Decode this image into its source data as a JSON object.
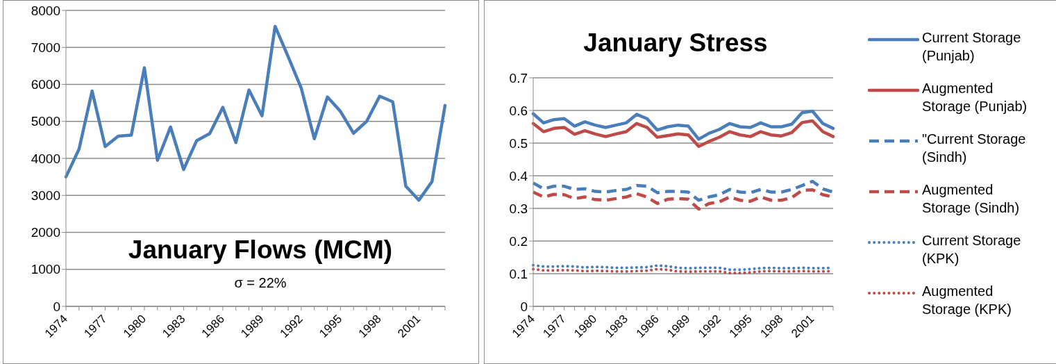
{
  "chart_data": [
    {
      "type": "line",
      "title": "January Flows (MCM)",
      "annotations": [
        "σ = 22%"
      ],
      "categories": [
        "1974",
        null,
        null,
        "1977",
        null,
        null,
        "1980",
        null,
        null,
        "1983",
        null,
        null,
        "1986",
        null,
        null,
        "1989",
        null,
        null,
        "1992",
        null,
        null,
        "1995",
        null,
        null,
        "1998",
        null,
        null,
        "2001",
        null,
        null
      ],
      "series": [
        {
          "color": "#4a7ebb",
          "values": [
            3500,
            4250,
            5820,
            4320,
            4600,
            4630,
            6450,
            3950,
            4850,
            3700,
            4480,
            4670,
            5380,
            4430,
            5850,
            5150,
            7570,
            6750,
            5900,
            4530,
            5660,
            5270,
            4680,
            5000,
            5680,
            5530,
            3250,
            2870,
            3370,
            5430
          ]
        }
      ],
      "ylim": [
        0,
        8000
      ],
      "yticks": [
        0,
        1000,
        2000,
        3000,
        4000,
        5000,
        6000,
        7000,
        8000
      ],
      "grid": "y",
      "line_style": "solid",
      "marker": "none"
    },
    {
      "type": "line",
      "title": "January Stress",
      "categories": [
        "1974",
        null,
        null,
        "1977",
        null,
        null,
        "1980",
        null,
        null,
        "1983",
        null,
        null,
        "1986",
        null,
        null,
        "1989",
        null,
        null,
        "1992",
        null,
        null,
        "1995",
        null,
        null,
        "1998",
        null,
        null,
        "2001",
        null,
        null
      ],
      "series": [
        {
          "name": "Current Storage (Punjab)",
          "color": "#4a7ebb",
          "line_style": "solid",
          "values": [
            0.59,
            0.562,
            0.572,
            0.575,
            0.552,
            0.565,
            0.555,
            0.548,
            0.555,
            0.562,
            0.588,
            0.575,
            0.54,
            0.55,
            0.555,
            0.552,
            0.512,
            0.53,
            0.542,
            0.56,
            0.55,
            0.548,
            0.562,
            0.55,
            0.55,
            0.558,
            0.593,
            0.598,
            0.56,
            0.545
          ]
        },
        {
          "name": "Augmented Storage (Punjab)",
          "color": "#be4b48",
          "line_style": "solid",
          "values": [
            0.56,
            0.535,
            0.545,
            0.548,
            0.527,
            0.538,
            0.528,
            0.52,
            0.528,
            0.535,
            0.56,
            0.548,
            0.518,
            0.523,
            0.528,
            0.525,
            0.49,
            0.505,
            0.518,
            0.535,
            0.525,
            0.52,
            0.535,
            0.525,
            0.522,
            0.532,
            0.563,
            0.568,
            0.535,
            0.52
          ]
        },
        {
          "name": "\"Current Storage (Sindh)",
          "color": "#4a7ebb",
          "line_style": "dashed",
          "values": [
            0.378,
            0.36,
            0.368,
            0.368,
            0.358,
            0.36,
            0.352,
            0.35,
            0.355,
            0.358,
            0.37,
            0.368,
            0.348,
            0.352,
            0.352,
            0.35,
            0.325,
            0.335,
            0.342,
            0.358,
            0.35,
            0.348,
            0.358,
            0.35,
            0.35,
            0.358,
            0.37,
            0.383,
            0.36,
            0.35
          ]
        },
        {
          "name": "Augmented Storage (Sindh)",
          "color": "#be4b48",
          "line_style": "dashed",
          "values": [
            0.35,
            0.335,
            0.343,
            0.342,
            0.33,
            0.335,
            0.327,
            0.325,
            0.33,
            0.335,
            0.345,
            0.335,
            0.315,
            0.328,
            0.33,
            0.328,
            0.298,
            0.315,
            0.32,
            0.335,
            0.325,
            0.322,
            0.335,
            0.325,
            0.325,
            0.333,
            0.355,
            0.357,
            0.342,
            0.335
          ]
        },
        {
          "name": "Current Storage (KPK)",
          "color": "#4a7ebb",
          "line_style": "dotted",
          "values": [
            0.126,
            0.122,
            0.122,
            0.123,
            0.122,
            0.119,
            0.121,
            0.12,
            0.118,
            0.118,
            0.119,
            0.12,
            0.125,
            0.123,
            0.118,
            0.117,
            0.118,
            0.118,
            0.118,
            0.112,
            0.112,
            0.114,
            0.117,
            0.118,
            0.117,
            0.117,
            0.118,
            0.117,
            0.117,
            0.118
          ]
        },
        {
          "name": "Augmented Storage (KPK)",
          "color": "#be4b48",
          "line_style": "dotted",
          "values": [
            0.114,
            0.11,
            0.11,
            0.111,
            0.11,
            0.108,
            0.109,
            0.108,
            0.107,
            0.107,
            0.108,
            0.109,
            0.114,
            0.112,
            0.107,
            0.106,
            0.107,
            0.107,
            0.107,
            0.102,
            0.102,
            0.104,
            0.107,
            0.108,
            0.107,
            0.107,
            0.108,
            0.107,
            0.107,
            0.108
          ]
        }
      ],
      "ylim": [
        0,
        0.7
      ],
      "yticks": [
        0,
        0.1,
        0.2,
        0.3,
        0.4,
        0.5,
        0.6,
        0.7
      ],
      "grid": "y",
      "legend": "right",
      "marker": "none"
    }
  ]
}
